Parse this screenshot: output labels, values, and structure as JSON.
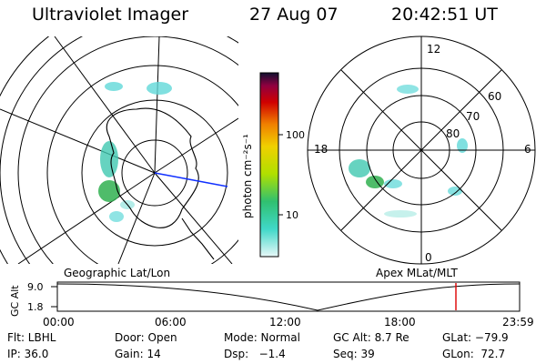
{
  "header": {
    "title": "Ultraviolet Imager",
    "date": "27 Aug 07",
    "time": "20:42:51 UT"
  },
  "colorbar": {
    "unit_label": "photon cm⁻²s⁻¹",
    "tick_labels": [
      "100",
      "10"
    ]
  },
  "polar": {
    "mlt_labels": [
      "12",
      "18",
      "6",
      "0"
    ],
    "lat_labels": [
      "60",
      "70",
      "80"
    ]
  },
  "projections": {
    "left": "Geographic Lat/Lon",
    "right": "Apex MLat/MLT"
  },
  "altitude_plot": {
    "ylabel": "GC Alt",
    "y_ticks": [
      "9.0",
      "1.8"
    ],
    "x_ticks": [
      "00:00",
      "06:00",
      "12:00",
      "18:00",
      "23:59"
    ],
    "marker_color": "#dd0000"
  },
  "footer": {
    "row1": [
      "Flt: LBHL",
      "Door: Open",
      "Mode: Normal",
      "GC Alt: 8.7 Re",
      "GLat: −79.9"
    ],
    "row2": [
      "IP: 36.0",
      "Gain: 14",
      "Dsp:   −1.4",
      "Seq: 39",
      "GLon:  72.7"
    ]
  }
}
